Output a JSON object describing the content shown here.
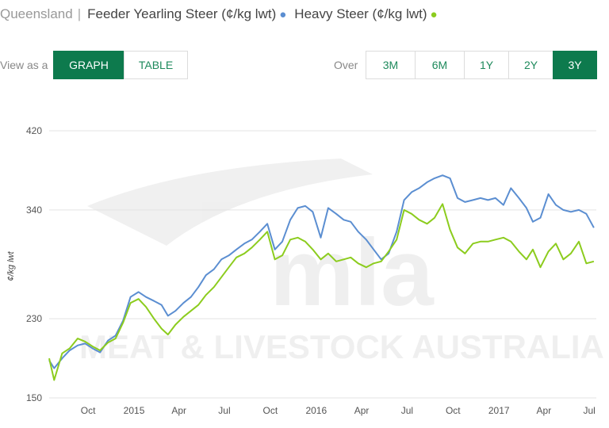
{
  "header": {
    "region": "Queensland",
    "separator": "|",
    "series1_label": "Feeder Yearling Steer (¢/kg lwt)",
    "series2_label": "Heavy Steer (¢/kg lwt)",
    "dot": "●"
  },
  "view": {
    "label": "View as a",
    "graph": "GRAPH",
    "table": "TABLE",
    "active": "GRAPH"
  },
  "range": {
    "label": "Over",
    "options": [
      "3M",
      "6M",
      "1Y",
      "2Y",
      "3Y"
    ],
    "active": "3Y"
  },
  "colors": {
    "feeder": "#5b8ed1",
    "heavy": "#8ccc1e",
    "active_button": "#0d7a4d",
    "grid": "#e3e3e3"
  },
  "watermark": {
    "text": "MEAT & LIVESTOCK AUSTRALIA",
    "logo": "mla"
  },
  "chart_data": {
    "type": "line",
    "ylabel": "¢/kg lwt",
    "ylim": [
      150,
      420
    ],
    "yticks": [
      150,
      230,
      340,
      420
    ],
    "x_range": [
      "2014-07-15",
      "2017-07-15"
    ],
    "x_ticks": [
      {
        "label": "Oct",
        "date": "2014-10-01"
      },
      {
        "label": "2015",
        "date": "2015-01-01"
      },
      {
        "label": "Apr",
        "date": "2015-04-01"
      },
      {
        "label": "Jul",
        "date": "2015-07-01"
      },
      {
        "label": "Oct",
        "date": "2015-10-01"
      },
      {
        "label": "2016",
        "date": "2016-01-01"
      },
      {
        "label": "Apr",
        "date": "2016-04-01"
      },
      {
        "label": "Jul",
        "date": "2016-07-01"
      },
      {
        "label": "Oct",
        "date": "2016-10-01"
      },
      {
        "label": "2017",
        "date": "2017-01-01"
      },
      {
        "label": "Apr",
        "date": "2017-04-01"
      },
      {
        "label": "Jul",
        "date": "2017-07-01"
      }
    ],
    "grid": true,
    "legend": "top",
    "series": [
      {
        "name": "Feeder Yearling Steer (¢/kg lwt)",
        "color": "#5b8ed1",
        "points": [
          [
            "2014-07-15",
            188
          ],
          [
            "2014-07-25",
            180
          ],
          [
            "2014-08-10",
            190
          ],
          [
            "2014-08-25",
            198
          ],
          [
            "2014-09-10",
            203
          ],
          [
            "2014-09-25",
            205
          ],
          [
            "2014-10-10",
            200
          ],
          [
            "2014-10-25",
            196
          ],
          [
            "2014-11-10",
            208
          ],
          [
            "2014-11-25",
            213
          ],
          [
            "2014-12-10",
            228
          ],
          [
            "2014-12-25",
            252
          ],
          [
            "2015-01-10",
            257
          ],
          [
            "2015-01-25",
            252
          ],
          [
            "2015-02-10",
            248
          ],
          [
            "2015-02-25",
            244
          ],
          [
            "2015-03-10",
            233
          ],
          [
            "2015-03-25",
            238
          ],
          [
            "2015-04-10",
            246
          ],
          [
            "2015-04-25",
            252
          ],
          [
            "2015-05-10",
            262
          ],
          [
            "2015-05-25",
            274
          ],
          [
            "2015-06-10",
            280
          ],
          [
            "2015-06-25",
            290
          ],
          [
            "2015-07-10",
            294
          ],
          [
            "2015-07-25",
            300
          ],
          [
            "2015-08-10",
            306
          ],
          [
            "2015-08-25",
            310
          ],
          [
            "2015-09-10",
            318
          ],
          [
            "2015-09-25",
            326
          ],
          [
            "2015-10-10",
            300
          ],
          [
            "2015-10-25",
            308
          ],
          [
            "2015-11-10",
            330
          ],
          [
            "2015-11-25",
            342
          ],
          [
            "2015-12-10",
            344
          ],
          [
            "2015-12-25",
            338
          ],
          [
            "2016-01-10",
            312
          ],
          [
            "2016-01-25",
            342
          ],
          [
            "2016-02-10",
            336
          ],
          [
            "2016-02-25",
            330
          ],
          [
            "2016-03-10",
            328
          ],
          [
            "2016-03-25",
            318
          ],
          [
            "2016-04-10",
            310
          ],
          [
            "2016-04-25",
            300
          ],
          [
            "2016-05-10",
            290
          ],
          [
            "2016-05-25",
            296
          ],
          [
            "2016-06-10",
            318
          ],
          [
            "2016-06-25",
            350
          ],
          [
            "2016-07-10",
            358
          ],
          [
            "2016-07-25",
            362
          ],
          [
            "2016-08-10",
            368
          ],
          [
            "2016-08-25",
            372
          ],
          [
            "2016-09-10",
            375
          ],
          [
            "2016-09-25",
            372
          ],
          [
            "2016-10-10",
            352
          ],
          [
            "2016-10-25",
            348
          ],
          [
            "2016-11-10",
            350
          ],
          [
            "2016-11-25",
            352
          ],
          [
            "2016-12-10",
            350
          ],
          [
            "2016-12-25",
            352
          ],
          [
            "2017-01-10",
            345
          ],
          [
            "2017-01-25",
            362
          ],
          [
            "2017-02-10",
            352
          ],
          [
            "2017-02-25",
            342
          ],
          [
            "2017-03-10",
            328
          ],
          [
            "2017-03-25",
            332
          ],
          [
            "2017-04-10",
            356
          ],
          [
            "2017-04-25",
            345
          ],
          [
            "2017-05-10",
            340
          ],
          [
            "2017-05-25",
            338
          ],
          [
            "2017-06-10",
            340
          ],
          [
            "2017-06-25",
            336
          ],
          [
            "2017-07-10",
            322
          ]
        ]
      },
      {
        "name": "Heavy Steer (¢/kg lwt)",
        "color": "#8ccc1e",
        "points": [
          [
            "2014-07-15",
            190
          ],
          [
            "2014-07-25",
            168
          ],
          [
            "2014-08-10",
            195
          ],
          [
            "2014-08-25",
            200
          ],
          [
            "2014-09-10",
            210
          ],
          [
            "2014-09-25",
            207
          ],
          [
            "2014-10-10",
            202
          ],
          [
            "2014-10-25",
            198
          ],
          [
            "2014-11-10",
            206
          ],
          [
            "2014-11-25",
            210
          ],
          [
            "2014-12-10",
            226
          ],
          [
            "2014-12-25",
            246
          ],
          [
            "2015-01-10",
            250
          ],
          [
            "2015-01-25",
            242
          ],
          [
            "2015-02-10",
            230
          ],
          [
            "2015-02-25",
            220
          ],
          [
            "2015-03-10",
            214
          ],
          [
            "2015-03-25",
            224
          ],
          [
            "2015-04-10",
            232
          ],
          [
            "2015-04-25",
            238
          ],
          [
            "2015-05-10",
            244
          ],
          [
            "2015-05-25",
            254
          ],
          [
            "2015-06-10",
            262
          ],
          [
            "2015-06-25",
            272
          ],
          [
            "2015-07-10",
            282
          ],
          [
            "2015-07-25",
            292
          ],
          [
            "2015-08-10",
            296
          ],
          [
            "2015-08-25",
            302
          ],
          [
            "2015-09-10",
            310
          ],
          [
            "2015-09-25",
            318
          ],
          [
            "2015-10-10",
            290
          ],
          [
            "2015-10-25",
            294
          ],
          [
            "2015-11-10",
            310
          ],
          [
            "2015-11-25",
            312
          ],
          [
            "2015-12-10",
            308
          ],
          [
            "2015-12-25",
            300
          ],
          [
            "2016-01-10",
            290
          ],
          [
            "2016-01-25",
            296
          ],
          [
            "2016-02-10",
            288
          ],
          [
            "2016-02-25",
            290
          ],
          [
            "2016-03-10",
            292
          ],
          [
            "2016-03-25",
            286
          ],
          [
            "2016-04-10",
            282
          ],
          [
            "2016-04-25",
            286
          ],
          [
            "2016-05-10",
            288
          ],
          [
            "2016-05-25",
            298
          ],
          [
            "2016-06-10",
            310
          ],
          [
            "2016-06-25",
            340
          ],
          [
            "2016-07-10",
            336
          ],
          [
            "2016-07-25",
            330
          ],
          [
            "2016-08-10",
            326
          ],
          [
            "2016-08-25",
            332
          ],
          [
            "2016-09-10",
            346
          ],
          [
            "2016-09-25",
            320
          ],
          [
            "2016-10-10",
            302
          ],
          [
            "2016-10-25",
            296
          ],
          [
            "2016-11-10",
            306
          ],
          [
            "2016-11-25",
            308
          ],
          [
            "2016-12-10",
            308
          ],
          [
            "2016-12-25",
            310
          ],
          [
            "2017-01-10",
            312
          ],
          [
            "2017-01-25",
            308
          ],
          [
            "2017-02-10",
            298
          ],
          [
            "2017-02-25",
            290
          ],
          [
            "2017-03-10",
            300
          ],
          [
            "2017-03-25",
            282
          ],
          [
            "2017-04-10",
            298
          ],
          [
            "2017-04-25",
            306
          ],
          [
            "2017-05-10",
            290
          ],
          [
            "2017-05-25",
            296
          ],
          [
            "2017-06-10",
            308
          ],
          [
            "2017-06-25",
            286
          ],
          [
            "2017-07-10",
            288
          ]
        ]
      }
    ]
  }
}
